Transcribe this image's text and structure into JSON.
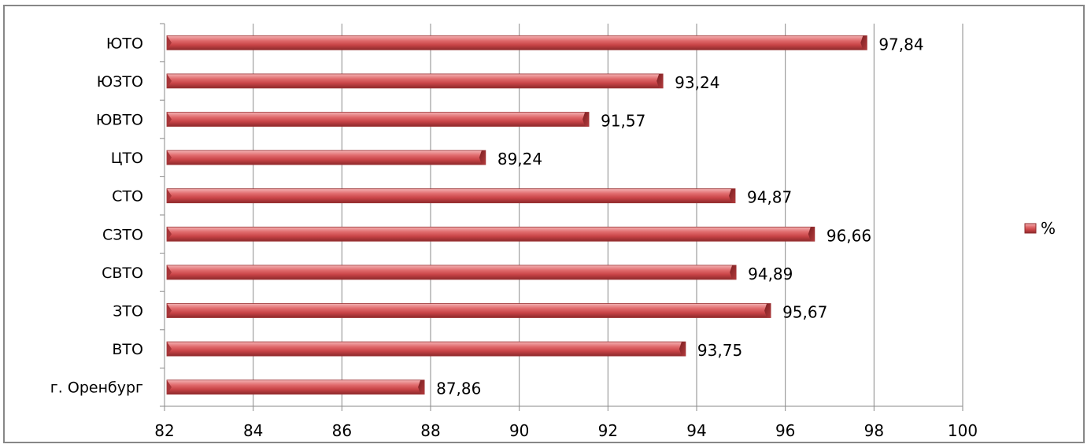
{
  "chart_data": {
    "type": "bar",
    "orientation": "horizontal",
    "categories": [
      "г. Оренбург",
      "ВТО",
      "ЗТО",
      "СВТО",
      "СЗТО",
      "СТО",
      "ЦТО",
      "ЮВТО",
      "ЮЗТО",
      "ЮТО"
    ],
    "series": [
      {
        "name": "%",
        "values": [
          87.86,
          93.75,
          95.67,
          94.89,
          96.66,
          94.87,
          89.24,
          91.57,
          93.24,
          97.84
        ],
        "labels": [
          "87,86",
          "93,75",
          "95,67",
          "94,89",
          "96,66",
          "94,87",
          "89,24",
          "91,57",
          "93,24",
          "97,84"
        ]
      }
    ],
    "xlim": [
      82,
      100
    ],
    "xticks": [
      82,
      84,
      86,
      88,
      90,
      92,
      94,
      96,
      98,
      100
    ],
    "xtick_labels": [
      "82",
      "84",
      "86",
      "88",
      "90",
      "92",
      "94",
      "96",
      "98",
      "100"
    ],
    "grid": true,
    "legend_position": "right",
    "bar_color": "#d9575a"
  },
  "legend": {
    "label": "%"
  }
}
